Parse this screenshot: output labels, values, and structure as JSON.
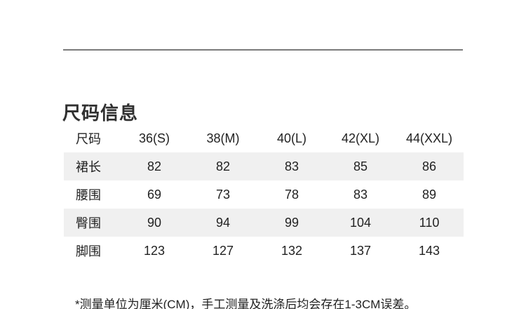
{
  "section": {
    "title": "尺码信息"
  },
  "size_table": {
    "header": [
      "尺码",
      "36(S)",
      "38(M)",
      "40(L)",
      "42(XL)",
      "44(XXL)"
    ],
    "rows": [
      {
        "label": "裙长",
        "values": [
          "82",
          "82",
          "83",
          "85",
          "86"
        ]
      },
      {
        "label": "腰围",
        "values": [
          "69",
          "73",
          "78",
          "83",
          "89"
        ]
      },
      {
        "label": "臀围",
        "values": [
          "90",
          "94",
          "99",
          "104",
          "110"
        ]
      },
      {
        "label": "脚围",
        "values": [
          "123",
          "127",
          "132",
          "137",
          "143"
        ]
      }
    ],
    "zebra_color": "#f0f0f0",
    "unit": "CM"
  },
  "footnote": {
    "text": "*测量单位为厘米(CM)，手工测量及洗涤后均会存在1-3CM误差。"
  },
  "colors": {
    "divider": "#7b7b7b",
    "text": "#222222",
    "title_text": "#303030",
    "zebra_row": "#f0f0f0",
    "background": "#ffffff"
  }
}
